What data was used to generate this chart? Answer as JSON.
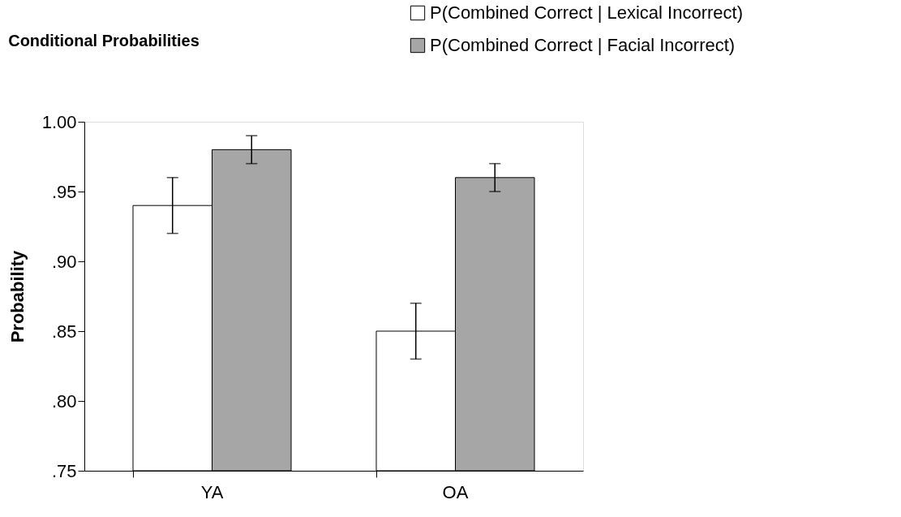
{
  "chart_data": {
    "type": "bar",
    "title": "Conditional Probabilities",
    "ylabel": "Probability",
    "categories": [
      "YA",
      "OA"
    ],
    "series": [
      {
        "name": "P(Combined Correct | Lexical Incorrect)",
        "color": "#ffffff",
        "values": [
          0.94,
          0.85
        ],
        "errors": [
          0.02,
          0.02
        ]
      },
      {
        "name": "P(Combined Correct | Facial Incorrect)",
        "color": "#a6a6a6",
        "values": [
          0.98,
          0.96
        ],
        "errors": [
          0.01,
          0.01
        ]
      }
    ],
    "ylim": [
      0.75,
      1.0
    ],
    "yticks": [
      {
        "value": 0.75,
        "label": ".75"
      },
      {
        "value": 0.8,
        "label": ".80"
      },
      {
        "value": 0.85,
        "label": ".85"
      },
      {
        "value": 0.9,
        "label": ".90"
      },
      {
        "value": 0.95,
        "label": ".95"
      },
      {
        "value": 1.0,
        "label": "1.00"
      }
    ],
    "grid": false,
    "legend": "top right"
  }
}
